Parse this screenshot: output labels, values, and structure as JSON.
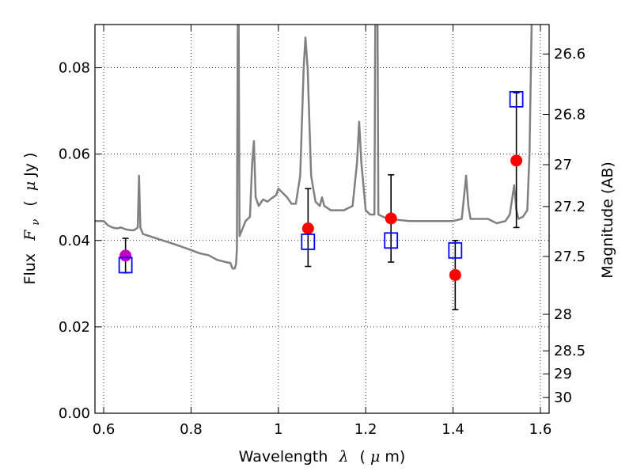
{
  "chart_data": {
    "type": "scatter",
    "xlabel": "Wavelength",
    "xlabel_symbol": "λ",
    "xlabel_unit_pre": "(",
    "xlabel_unit_mu": "μ",
    "xlabel_unit_post": "m)",
    "ylabel": "Flux",
    "ylabel_symbol": "F",
    "ylabel_subscript": "ν",
    "ylabel_unit_pre": "(",
    "ylabel_unit_mu": "μ",
    "ylabel_unit_post": "Jy )",
    "y2label": "Magnitude (AB)",
    "xlim": [
      0.58,
      1.62
    ],
    "ylim": [
      0.0,
      0.09
    ],
    "grid": true,
    "x_ticks": [
      {
        "value": 0.6,
        "label": "0.6"
      },
      {
        "value": 0.8,
        "label": "0.8"
      },
      {
        "value": 1.0,
        "label": "1"
      },
      {
        "value": 1.2,
        "label": "1.2"
      },
      {
        "value": 1.4,
        "label": "1.4"
      },
      {
        "value": 1.6,
        "label": "1.6"
      }
    ],
    "y_ticks": [
      {
        "value": 0.0,
        "label": "0.00"
      },
      {
        "value": 0.02,
        "label": "0.02"
      },
      {
        "value": 0.04,
        "label": "0.04"
      },
      {
        "value": 0.06,
        "label": "0.06"
      },
      {
        "value": 0.08,
        "label": "0.08"
      }
    ],
    "y2_ticks": [
      {
        "mag": 26.6,
        "label": "26.6"
      },
      {
        "mag": 26.8,
        "label": "26.8"
      },
      {
        "mag": 27.0,
        "label": "27"
      },
      {
        "mag": 27.2,
        "label": "27.2"
      },
      {
        "mag": 27.5,
        "label": "27.5"
      },
      {
        "mag": 28.0,
        "label": "28"
      },
      {
        "mag": 28.5,
        "label": "28.5"
      },
      {
        "mag": 29.0,
        "label": "29"
      },
      {
        "mag": 30.0,
        "label": "30"
      }
    ],
    "series": [
      {
        "kind": "line",
        "color": "#808080",
        "points": [
          [
            0.58,
            0.0445
          ],
          [
            0.6,
            0.0445
          ],
          [
            0.61,
            0.0435
          ],
          [
            0.62,
            0.043
          ],
          [
            0.63,
            0.0428
          ],
          [
            0.64,
            0.043
          ],
          [
            0.65,
            0.0426
          ],
          [
            0.66,
            0.0424
          ],
          [
            0.67,
            0.0424
          ],
          [
            0.678,
            0.043
          ],
          [
            0.681,
            0.055
          ],
          [
            0.684,
            0.043
          ],
          [
            0.69,
            0.0415
          ],
          [
            0.72,
            0.0405
          ],
          [
            0.76,
            0.0392
          ],
          [
            0.8,
            0.0378
          ],
          [
            0.82,
            0.037
          ],
          [
            0.84,
            0.0366
          ],
          [
            0.86,
            0.0355
          ],
          [
            0.88,
            0.035
          ],
          [
            0.89,
            0.0348
          ],
          [
            0.895,
            0.0335
          ],
          [
            0.9,
            0.0335
          ],
          [
            0.903,
            0.0345
          ],
          [
            0.905,
            0.038
          ],
          [
            0.907,
            0.092
          ],
          [
            0.909,
            0.092
          ],
          [
            0.911,
            0.041
          ],
          [
            0.915,
            0.042
          ],
          [
            0.925,
            0.0445
          ],
          [
            0.935,
            0.0455
          ],
          [
            0.94,
            0.058
          ],
          [
            0.944,
            0.063
          ],
          [
            0.948,
            0.05
          ],
          [
            0.955,
            0.048
          ],
          [
            0.965,
            0.0495
          ],
          [
            0.975,
            0.049
          ],
          [
            0.985,
            0.0498
          ],
          [
            0.995,
            0.0505
          ],
          [
            1.0,
            0.052
          ],
          [
            1.01,
            0.051
          ],
          [
            1.02,
            0.05
          ],
          [
            1.03,
            0.0485
          ],
          [
            1.04,
            0.0485
          ],
          [
            1.05,
            0.055
          ],
          [
            1.058,
            0.08
          ],
          [
            1.062,
            0.087
          ],
          [
            1.067,
            0.08
          ],
          [
            1.075,
            0.055
          ],
          [
            1.085,
            0.049
          ],
          [
            1.095,
            0.048
          ],
          [
            1.1,
            0.05
          ],
          [
            1.105,
            0.048
          ],
          [
            1.12,
            0.047
          ],
          [
            1.15,
            0.047
          ],
          [
            1.17,
            0.048
          ],
          [
            1.18,
            0.058
          ],
          [
            1.185,
            0.0675
          ],
          [
            1.19,
            0.058
          ],
          [
            1.2,
            0.047
          ],
          [
            1.21,
            0.046
          ],
          [
            1.22,
            0.046
          ],
          [
            1.222,
            0.092
          ],
          [
            1.227,
            0.092
          ],
          [
            1.229,
            0.046
          ],
          [
            1.25,
            0.045
          ],
          [
            1.3,
            0.0445
          ],
          [
            1.35,
            0.0445
          ],
          [
            1.4,
            0.0445
          ],
          [
            1.42,
            0.045
          ],
          [
            1.43,
            0.055
          ],
          [
            1.435,
            0.048
          ],
          [
            1.44,
            0.045
          ],
          [
            1.46,
            0.045
          ],
          [
            1.48,
            0.045
          ],
          [
            1.5,
            0.044
          ],
          [
            1.52,
            0.0445
          ],
          [
            1.53,
            0.046
          ],
          [
            1.54,
            0.0528
          ],
          [
            1.545,
            0.047
          ],
          [
            1.55,
            0.045
          ],
          [
            1.56,
            0.0455
          ],
          [
            1.57,
            0.047
          ],
          [
            1.575,
            0.06
          ],
          [
            1.58,
            0.09
          ],
          [
            1.585,
            0.092
          ]
        ]
      },
      {
        "kind": "errorbar-points",
        "marker": "circle",
        "color": "#ff0000",
        "points": [
          {
            "x": 1.068,
            "y": 0.0428,
            "yerr_low": 0.034,
            "yerr_high": 0.052
          },
          {
            "x": 1.258,
            "y": 0.0451,
            "yerr_low": 0.035,
            "yerr_high": 0.0552
          },
          {
            "x": 1.405,
            "y": 0.032,
            "yerr_low": 0.024,
            "yerr_high": 0.04
          },
          {
            "x": 1.545,
            "y": 0.0585,
            "yerr_low": 0.043,
            "yerr_high": 0.0742
          }
        ]
      },
      {
        "kind": "errorbar-points",
        "marker": "circle",
        "color": "#bf00bf",
        "points": [
          {
            "x": 0.65,
            "y": 0.0365,
            "yerr_low": 0.0325,
            "yerr_high": 0.0405
          }
        ]
      },
      {
        "kind": "points",
        "marker": "open-square",
        "color": "#0000ff",
        "points": [
          {
            "x": 0.65,
            "y": 0.0343
          },
          {
            "x": 1.068,
            "y": 0.0397
          },
          {
            "x": 1.258,
            "y": 0.04
          },
          {
            "x": 1.405,
            "y": 0.0377
          },
          {
            "x": 1.545,
            "y": 0.0727
          }
        ]
      }
    ]
  }
}
